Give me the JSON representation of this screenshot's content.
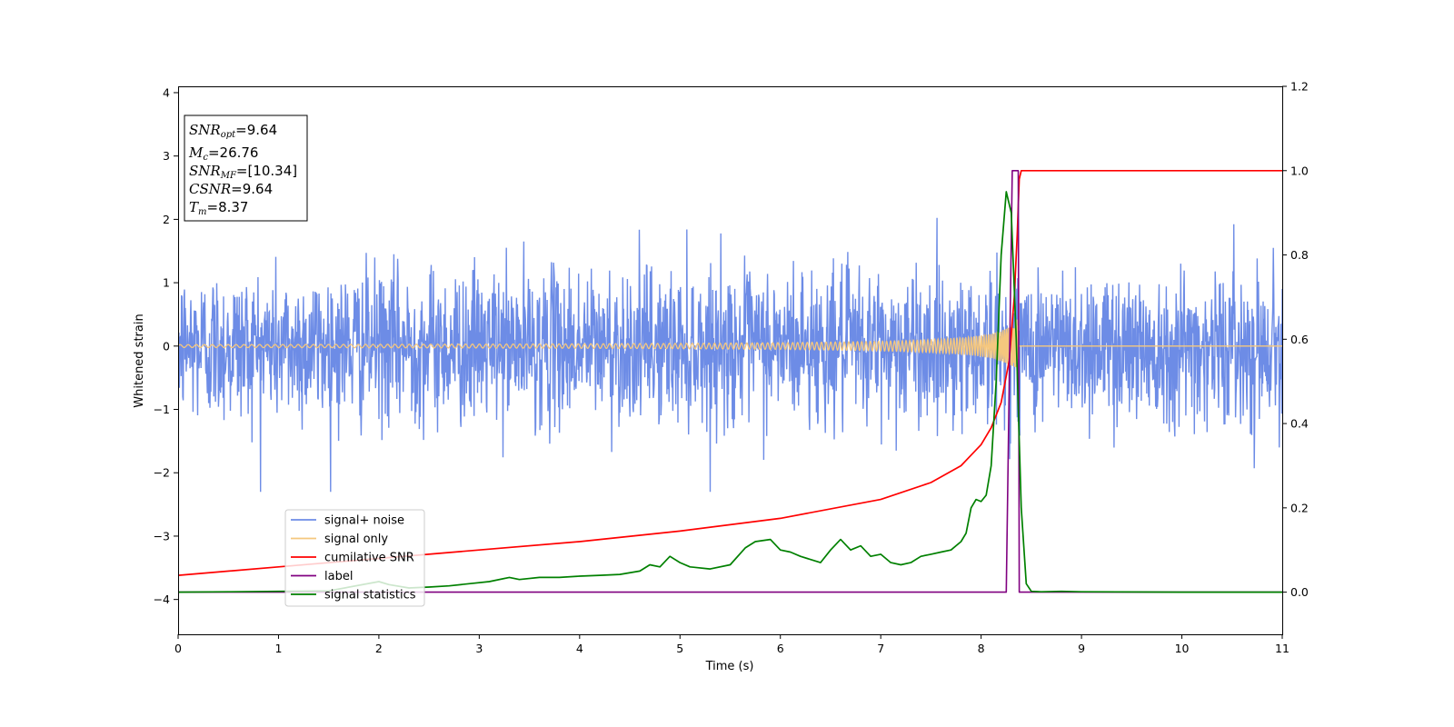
{
  "chart_data": {
    "type": "line",
    "xlabel": "Time (s)",
    "ylabel": "Whitened strain",
    "xlim": [
      0,
      11
    ],
    "ylim": [
      -4.55,
      4.1
    ],
    "y2lim": [
      -0.1,
      1.2
    ],
    "x_ticks": [
      "0",
      "1",
      "2",
      "3",
      "4",
      "5",
      "6",
      "7",
      "8",
      "9",
      "10",
      "11"
    ],
    "y_ticks": [
      "−4",
      "−3",
      "−2",
      "−1",
      "0",
      "1",
      "2",
      "3",
      "4"
    ],
    "y2_ticks": [
      "0.0",
      "0.2",
      "0.4",
      "0.6",
      "0.8",
      "1.0",
      "1.2"
    ],
    "legend_position": "lower-left",
    "annotation": {
      "snr_opt": {
        "symbol": "SNR",
        "sub": "opt",
        "value": "=9.64"
      },
      "mc": {
        "symbol": "M",
        "sub": "c",
        "value": "=26.76"
      },
      "snr_mf": {
        "symbol": "SNR",
        "sub": "MF",
        "value": "=[10.34]"
      },
      "csnr": {
        "symbol": "CSNR",
        "sub": "",
        "value": "=9.64"
      },
      "tm": {
        "symbol": "T",
        "sub": "m",
        "value": "=8.37"
      }
    },
    "series": [
      {
        "name": "signal+ noise",
        "axis": "left",
        "color": "#6d8ce6",
        "description_values": {
          "std": 0.6,
          "max": 2.72,
          "min": -2.3
        }
      },
      {
        "name": "signal only",
        "axis": "left",
        "color": "#f5c77e",
        "merger_time": 8.37,
        "peak_amplitude": 0.45
      },
      {
        "name": "cumilative SNR",
        "axis": "right",
        "color": "#ff0000",
        "x": [
          0,
          1,
          2,
          3,
          4,
          5,
          6,
          7,
          7.5,
          7.8,
          8.0,
          8.1,
          8.2,
          8.28,
          8.33,
          8.36,
          8.38,
          8.4,
          11
        ],
        "y": [
          0.04,
          0.06,
          0.08,
          0.1,
          0.12,
          0.145,
          0.175,
          0.22,
          0.26,
          0.3,
          0.35,
          0.39,
          0.45,
          0.55,
          0.7,
          0.85,
          0.98,
          1.0,
          1.0
        ]
      },
      {
        "name": "label",
        "axis": "right",
        "color": "#800080",
        "x": [
          0,
          8.25,
          8.31,
          8.37,
          8.38,
          11
        ],
        "y": [
          0,
          0,
          1.0,
          1.0,
          0,
          0
        ]
      },
      {
        "name": "signal statistics",
        "axis": "right",
        "color": "#008000",
        "x": [
          0,
          0.5,
          1.0,
          1.5,
          2.0,
          2.1,
          2.3,
          2.5,
          2.7,
          2.9,
          3.1,
          3.3,
          3.4,
          3.6,
          3.8,
          4.0,
          4.2,
          4.4,
          4.6,
          4.7,
          4.8,
          4.9,
          5.0,
          5.1,
          5.3,
          5.5,
          5.65,
          5.75,
          5.9,
          6.0,
          6.1,
          6.2,
          6.4,
          6.5,
          6.6,
          6.7,
          6.8,
          6.9,
          7.0,
          7.1,
          7.2,
          7.3,
          7.4,
          7.5,
          7.6,
          7.7,
          7.8,
          7.85,
          7.9,
          7.95,
          8.0,
          8.05,
          8.1,
          8.15,
          8.2,
          8.25,
          8.3,
          8.35,
          8.4,
          8.45,
          8.5,
          8.6,
          8.8,
          9.0,
          10.0,
          11.0
        ],
        "y": [
          0.0,
          0.001,
          0.002,
          0.003,
          0.025,
          0.018,
          0.01,
          0.012,
          0.015,
          0.02,
          0.025,
          0.035,
          0.03,
          0.035,
          0.035,
          0.038,
          0.04,
          0.042,
          0.05,
          0.065,
          0.06,
          0.085,
          0.07,
          0.06,
          0.055,
          0.065,
          0.105,
          0.12,
          0.125,
          0.1,
          0.095,
          0.085,
          0.07,
          0.1,
          0.125,
          0.1,
          0.11,
          0.085,
          0.09,
          0.07,
          0.065,
          0.07,
          0.085,
          0.09,
          0.095,
          0.1,
          0.12,
          0.14,
          0.2,
          0.22,
          0.215,
          0.23,
          0.3,
          0.5,
          0.8,
          0.95,
          0.9,
          0.6,
          0.2,
          0.02,
          0.002,
          0.001,
          0.002,
          0.001,
          0.0,
          0.0
        ]
      }
    ]
  }
}
